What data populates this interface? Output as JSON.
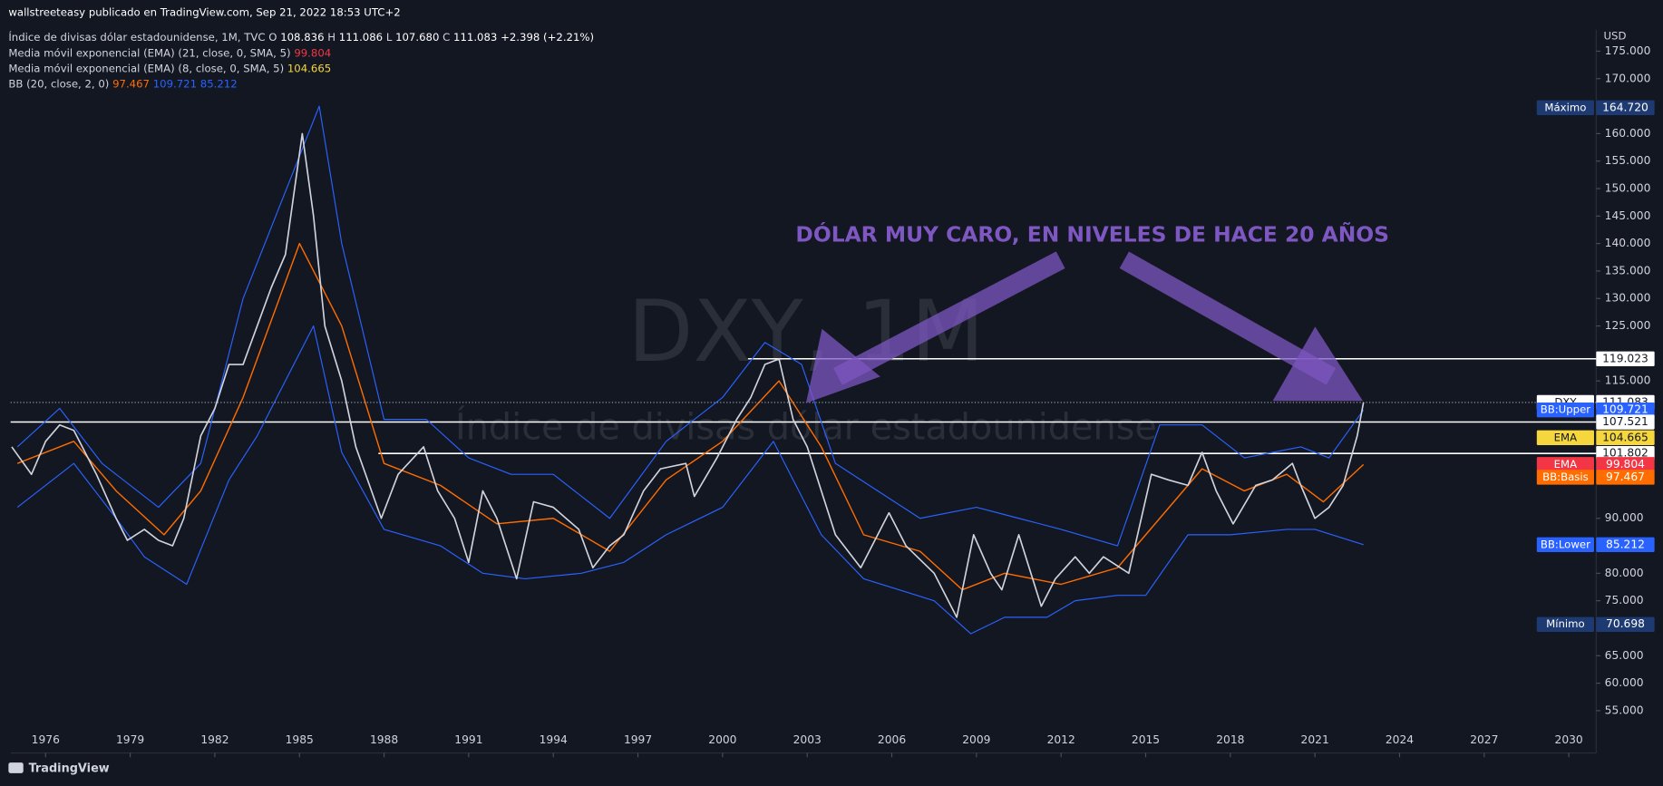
{
  "header": {
    "publisher": "wallstreeteasy publicado en TradingView.com, Sep 21, 2022 18:53 UTC+2",
    "symbol": "Índice de divisas dólar estadounidense, 1M, TVC",
    "ohlc": [
      {
        "key": "O",
        "value": "108.836"
      },
      {
        "key": "H",
        "value": "111.086"
      },
      {
        "key": "L",
        "value": "107.680"
      },
      {
        "key": "C",
        "value": "111.083"
      }
    ],
    "change": "+2.398 (+2.21%)",
    "indicators": [
      {
        "text": "Media móvil exponencial (EMA) (21, close, 0, SMA, 5)",
        "values": [
          {
            "text": "99.804",
            "color": "#f23645"
          }
        ]
      },
      {
        "text": "Media móvil exponencial (EMA) (8, close, 0, SMA, 5)",
        "values": [
          {
            "text": "104.665",
            "color": "#f5d63d"
          }
        ]
      },
      {
        "text": "BB (20, close, 2, 0)",
        "values": [
          {
            "text": "97.467",
            "color": "#ff6d00"
          },
          {
            "text": "109.721",
            "color": "#2962ff"
          },
          {
            "text": "85.212",
            "color": "#2962ff"
          }
        ]
      }
    ],
    "currency": "USD",
    "brand": "TradingView"
  },
  "chart_data": {
    "type": "line",
    "watermark": [
      "DXY, 1M",
      "Índice de divisas dólar estadounidense"
    ],
    "annotation": "DÓLAR MUY CARO, EN NIVELES DE HACE 20 AÑOS",
    "xlim": [
      1974.76,
      2030.97
    ],
    "ylim": [
      47.3,
      178.5
    ],
    "xticks": [
      1976,
      1979,
      1982,
      1985,
      1988,
      1991,
      1994,
      1997,
      2000,
      2003,
      2006,
      2009,
      2012,
      2015,
      2018,
      2021,
      2024,
      2027,
      2030
    ],
    "yticks": [
      {
        "value": 55,
        "label": "55.000"
      },
      {
        "value": 60,
        "label": "60.000"
      },
      {
        "value": 65,
        "label": "65.000"
      },
      {
        "value": 75,
        "label": "75.000"
      },
      {
        "value": 80,
        "label": "80.000"
      },
      {
        "value": 90,
        "label": "90.000"
      },
      {
        "value": 115,
        "label": "115.000"
      },
      {
        "value": 125,
        "label": "125.000"
      },
      {
        "value": 130,
        "label": "130.000"
      },
      {
        "value": 135,
        "label": "135.000"
      },
      {
        "value": 140,
        "label": "140.000"
      },
      {
        "value": 145,
        "label": "145.000"
      },
      {
        "value": 150,
        "label": "150.000"
      },
      {
        "value": 155,
        "label": "155.000"
      },
      {
        "value": 160,
        "label": "160.000"
      },
      {
        "value": 170,
        "label": "170.000"
      },
      {
        "value": 175,
        "label": "175.000"
      }
    ],
    "series": [
      {
        "name": "BB:Upper",
        "color": "#2962ff",
        "width": 1,
        "x": [
          1975,
          1976.5,
          1978,
          1980,
          1981.5,
          1983,
          1985.7,
          1986.5,
          1988,
          1989.5,
          1991,
          1992.5,
          1994,
          1996,
          1998,
          2000,
          2001.5,
          2002.8,
          2004,
          2005.5,
          2007,
          2009,
          2010.5,
          2012,
          2014,
          2015.5,
          2017,
          2018.5,
          2020.5,
          2021.5,
          2022.72
        ],
        "values": [
          103,
          110,
          100,
          92,
          100,
          130,
          165,
          140,
          108,
          108,
          101,
          98,
          98,
          90,
          104,
          112,
          122,
          118,
          100,
          95,
          90,
          92,
          90,
          88,
          85,
          107,
          107,
          101,
          103,
          101,
          109.721
        ]
      },
      {
        "name": "BB:Lower",
        "color": "#2962ff",
        "width": 1,
        "x": [
          1975,
          1977,
          1978.5,
          1979.5,
          1981,
          1982.5,
          1983.5,
          1985.5,
          1986.5,
          1988,
          1990,
          1991.5,
          1993,
          1995,
          1996.5,
          1998,
          2000,
          2001.8,
          2003.5,
          2005,
          2007.5,
          2008.8,
          2010,
          2011.5,
          2012.5,
          2014,
          2015,
          2016.5,
          2018,
          2020,
          2021,
          2022.72
        ],
        "values": [
          92,
          100,
          90,
          83,
          78,
          97,
          105,
          125,
          102,
          88,
          85,
          80,
          79,
          80,
          82,
          87,
          92,
          104,
          87,
          79,
          75,
          69,
          72,
          72,
          75,
          76,
          76,
          87,
          87,
          88,
          88,
          85.212
        ]
      },
      {
        "name": "EMA",
        "color": "#ff6d00",
        "width": 1.2,
        "x": [
          1975,
          1977,
          1978.5,
          1980.2,
          1981.5,
          1983,
          1985,
          1986.5,
          1988,
          1990,
          1992,
          1994,
          1996,
          1998,
          2000,
          2002,
          2003.5,
          2005,
          2007,
          2008.5,
          2010,
          2012,
          2014,
          2015.5,
          2017,
          2018.5,
          2020,
          2021.3,
          2022.72
        ],
        "values": [
          100,
          104,
          95,
          87,
          95,
          112,
          140,
          125,
          100,
          96,
          89,
          90,
          84,
          97,
          104,
          115,
          103,
          87,
          84,
          77,
          80,
          78,
          81,
          90,
          99,
          95,
          98,
          93,
          99.804
        ]
      },
      {
        "name": "DXY",
        "color": "#d1d4dc",
        "width": 1.4,
        "x": [
          1974.8,
          1975.5,
          1976,
          1976.5,
          1977,
          1977.8,
          1978.5,
          1978.9,
          1979.5,
          1980,
          1980.5,
          1980.9,
          1981.5,
          1982,
          1982.5,
          1983,
          1983.5,
          1984,
          1984.5,
          1985.1,
          1985.5,
          1985.9,
          1986.5,
          1987,
          1987.9,
          1988.5,
          1989.4,
          1989.9,
          1990.5,
          1991,
          1991.5,
          1992,
          1992.7,
          1993.3,
          1994,
          1994.9,
          1995.4,
          1996,
          1996.5,
          1997.2,
          1997.8,
          1998.7,
          1999,
          1999.8,
          2000.5,
          2001,
          2001.5,
          2002,
          2002.5,
          2003,
          2003.5,
          2004,
          2004.9,
          2005.9,
          2006.5,
          2007.5,
          2008.3,
          2008.9,
          2009.5,
          2009.9,
          2010.5,
          2011.3,
          2011.8,
          2012.5,
          2013,
          2013.5,
          2014.4,
          2015.2,
          2015.8,
          2016.5,
          2017,
          2017.5,
          2018.1,
          2018.9,
          2019.5,
          2020.2,
          2020.5,
          2021,
          2021.5,
          2022,
          2022.5,
          2022.72
        ],
        "values": [
          103,
          98,
          104,
          107,
          106,
          98,
          90,
          86,
          88,
          86,
          85,
          90,
          105,
          110,
          118,
          118,
          125,
          132,
          138,
          160,
          145,
          125,
          115,
          103,
          90,
          98,
          103,
          95,
          90,
          82,
          95,
          90,
          79,
          93,
          92,
          88,
          81,
          85,
          87,
          95,
          99,
          100,
          94,
          101,
          108,
          112,
          118,
          119,
          108,
          103,
          95,
          87,
          81,
          91,
          85,
          80,
          72,
          87,
          80,
          77,
          87,
          74,
          79,
          83,
          80,
          83,
          80,
          98,
          97,
          96,
          102,
          95,
          89,
          96,
          97,
          100,
          96,
          90,
          92,
          96,
          105,
          111.083
        ]
      }
    ],
    "h_lines": [
      {
        "value": 119.023,
        "from": 2000.9
      },
      {
        "value": 107.521,
        "from": 1974.76
      },
      {
        "value": 101.802,
        "from": 1987.8
      }
    ],
    "price_labels": [
      {
        "name": "Máximo",
        "value": 164.72,
        "label": "164.720",
        "color": "#1e3a72",
        "text_color": "#ffffff"
      },
      {
        "value": 119.023,
        "label": "119.023",
        "color": "#ffffff",
        "text_color": "#131722"
      },
      {
        "name": "DXY",
        "value": 111.083,
        "label": "111.083",
        "color": "#ffffff",
        "text_color": "#131722",
        "line": "dotted"
      },
      {
        "name": "BB:Upper",
        "value": 109.721,
        "label": "109.721",
        "color": "#2962ff",
        "text_color": "#ffffff"
      },
      {
        "value": 107.521,
        "label": "107.521",
        "color": "#ffffff",
        "text_color": "#131722"
      },
      {
        "name": "EMA",
        "value": 104.665,
        "label": "104.665",
        "color": "#f5d63d",
        "text_color": "#131722"
      },
      {
        "value": 101.802,
        "label": "101.802",
        "color": "#ffffff",
        "text_color": "#131722"
      },
      {
        "name": "EMA",
        "value": 99.804,
        "label": "99.804",
        "color": "#f23645",
        "text_color": "#ffffff"
      },
      {
        "name": "BB:Basis",
        "value": 97.467,
        "label": "97.467",
        "color": "#ff6d00",
        "text_color": "#ffffff"
      },
      {
        "name": "BB:Lower",
        "value": 85.212,
        "label": "85.212",
        "color": "#2962ff",
        "text_color": "#ffffff"
      },
      {
        "name": "Mínimo",
        "value": 70.698,
        "label": "70.698",
        "color": "#1e3a72",
        "text_color": "#ffffff"
      }
    ]
  }
}
